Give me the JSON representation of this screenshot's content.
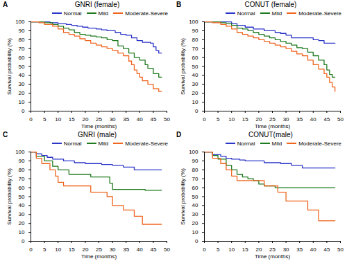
{
  "chart_data": [
    {
      "type": "line",
      "panel": "A",
      "title": "GNRI (female)",
      "x_label": "Time (months)",
      "y_label": "Survival probability (%)",
      "xlim": [
        0,
        50
      ],
      "ylim": [
        0,
        100
      ],
      "xticks": [
        0,
        5,
        10,
        15,
        20,
        25,
        30,
        35,
        40,
        45,
        50
      ],
      "yticks": [
        0,
        10,
        20,
        30,
        40,
        50,
        60,
        70,
        80,
        90,
        100
      ],
      "grid": false,
      "legend": "top-right",
      "line_style": "step",
      "series": [
        {
          "name": "Normal",
          "color": "#2b35c8",
          "x": [
            0,
            7,
            10,
            13,
            15,
            17,
            19,
            21,
            24,
            26,
            28,
            31,
            33,
            35,
            37,
            39,
            41,
            44,
            45,
            46,
            47,
            48
          ],
          "values": [
            100,
            99,
            98,
            97,
            96,
            95,
            94,
            93,
            92,
            91,
            90,
            88,
            86,
            85,
            82,
            79,
            77,
            76,
            72,
            68,
            65,
            65
          ]
        },
        {
          "name": "Mild",
          "color": "#1e7a1e",
          "x": [
            0,
            5,
            8,
            10,
            12,
            14,
            16,
            18,
            20,
            22,
            24,
            26,
            28,
            30,
            32,
            34,
            36,
            38,
            40,
            42,
            43,
            45,
            47,
            48
          ],
          "values": [
            100,
            99,
            97,
            95,
            93,
            91,
            88,
            86,
            85,
            84,
            83,
            82,
            80,
            79,
            73,
            70,
            65,
            60,
            57,
            52,
            48,
            42,
            38,
            38
          ]
        },
        {
          "name": "Moderate-Severe",
          "color": "#f0641e",
          "x": [
            0,
            3,
            5,
            8,
            10,
            12,
            14,
            16,
            18,
            20,
            22,
            24,
            26,
            28,
            30,
            32,
            34,
            36,
            37,
            38,
            39,
            40,
            41,
            43,
            45,
            47,
            48
          ],
          "values": [
            100,
            99,
            97,
            95,
            92,
            88,
            86,
            84,
            81,
            79,
            76,
            74,
            72,
            70,
            68,
            65,
            62,
            56,
            52,
            46,
            42,
            38,
            34,
            30,
            25,
            22,
            22
          ]
        }
      ]
    },
    {
      "type": "line",
      "panel": "B",
      "title": "CONUT (female)",
      "x_label": "Time (months)",
      "y_label": "Survival probability (%)",
      "xlim": [
        0,
        50
      ],
      "ylim": [
        0,
        100
      ],
      "xticks": [
        0,
        5,
        10,
        15,
        20,
        25,
        30,
        35,
        40,
        45,
        50
      ],
      "yticks": [
        0,
        10,
        20,
        30,
        40,
        50,
        60,
        70,
        80,
        90,
        100
      ],
      "grid": false,
      "legend": "top-right",
      "line_style": "step",
      "series": [
        {
          "name": "Normal",
          "color": "#2b35c8",
          "x": [
            0,
            10,
            12,
            15,
            18,
            22,
            26,
            28,
            30,
            32,
            40,
            42,
            44,
            48
          ],
          "values": [
            100,
            98,
            96,
            94,
            92,
            90,
            88,
            87,
            85,
            82,
            80,
            79,
            76,
            76
          ]
        },
        {
          "name": "Mild",
          "color": "#1e7a1e",
          "x": [
            0,
            6,
            8,
            10,
            12,
            14,
            16,
            18,
            20,
            22,
            24,
            26,
            28,
            30,
            32,
            34,
            36,
            38,
            40,
            42,
            44,
            45,
            46,
            47,
            48
          ],
          "values": [
            100,
            99,
            98,
            96,
            93,
            92,
            90,
            88,
            86,
            84,
            82,
            80,
            78,
            76,
            74,
            71,
            70,
            66,
            62,
            57,
            52,
            46,
            41,
            38,
            38
          ]
        },
        {
          "name": "Moderate-Severe",
          "color": "#f0641e",
          "x": [
            0,
            3,
            6,
            8,
            10,
            12,
            14,
            16,
            18,
            20,
            22,
            24,
            26,
            28,
            30,
            32,
            34,
            36,
            38,
            40,
            42,
            44,
            45,
            46,
            47,
            48
          ],
          "values": [
            100,
            99,
            97,
            95,
            92,
            88,
            86,
            84,
            82,
            80,
            78,
            76,
            74,
            72,
            70,
            67,
            64,
            62,
            57,
            52,
            47,
            42,
            38,
            32,
            27,
            22
          ]
        }
      ]
    },
    {
      "type": "line",
      "panel": "C",
      "title": "GNRI (male)",
      "x_label": "Time (months)",
      "y_label": "Survival probability (%)",
      "xlim": [
        0,
        50
      ],
      "ylim": [
        0,
        100
      ],
      "xticks": [
        0,
        5,
        10,
        15,
        20,
        25,
        30,
        35,
        40,
        45,
        50
      ],
      "yticks": [
        0,
        10,
        20,
        30,
        40,
        50,
        60,
        70,
        80,
        90,
        100
      ],
      "grid": false,
      "legend": "top-right",
      "line_style": "step",
      "series": [
        {
          "name": "Normal",
          "color": "#2b35c8",
          "x": [
            0,
            2,
            4,
            6,
            8,
            12,
            16,
            20,
            26,
            30,
            34,
            38,
            48
          ],
          "values": [
            100,
            98,
            96,
            94,
            92,
            90,
            88,
            87,
            86,
            85,
            83,
            80,
            80
          ]
        },
        {
          "name": "Mild",
          "color": "#1e7a1e",
          "x": [
            0,
            2,
            5,
            8,
            10,
            14,
            22,
            29,
            30,
            42,
            48
          ],
          "values": [
            100,
            95,
            90,
            84,
            80,
            75,
            72,
            65,
            58,
            57,
            57
          ]
        },
        {
          "name": "Moderate-Severe",
          "color": "#f0641e",
          "x": [
            0,
            2,
            4,
            7,
            9,
            10,
            12,
            22,
            28,
            30,
            34,
            38,
            41,
            48
          ],
          "values": [
            100,
            93,
            87,
            80,
            73,
            66,
            62,
            55,
            50,
            40,
            35,
            28,
            19,
            19
          ]
        }
      ]
    },
    {
      "type": "line",
      "panel": "D",
      "title": "CONUT(male)",
      "x_label": "Time (months)",
      "y_label": "Survival probability (%)",
      "xlim": [
        0,
        50
      ],
      "ylim": [
        0,
        100
      ],
      "xticks": [
        0,
        5,
        10,
        15,
        20,
        25,
        30,
        35,
        40,
        45,
        50
      ],
      "yticks": [
        0,
        10,
        20,
        30,
        40,
        50,
        60,
        70,
        80,
        90,
        100
      ],
      "grid": false,
      "legend": "top-right",
      "line_style": "step",
      "series": [
        {
          "name": "Normal",
          "color": "#2b35c8",
          "x": [
            0,
            3,
            6,
            8,
            10,
            13,
            15,
            22,
            28,
            32,
            36,
            48
          ],
          "values": [
            100,
            97,
            95,
            93,
            92,
            91,
            90,
            88,
            87,
            85,
            82,
            82
          ]
        },
        {
          "name": "Mild",
          "color": "#1e7a1e",
          "x": [
            0,
            3,
            5,
            8,
            10,
            12,
            14,
            16,
            18,
            20,
            22,
            26,
            48
          ],
          "values": [
            100,
            96,
            92,
            85,
            80,
            75,
            72,
            70,
            68,
            64,
            62,
            60,
            60
          ]
        },
        {
          "name": "Moderate-Severe",
          "color": "#f0641e",
          "x": [
            0,
            3,
            6,
            8,
            10,
            12,
            22,
            27,
            30,
            38,
            42,
            48
          ],
          "values": [
            100,
            93,
            87,
            80,
            73,
            68,
            62,
            55,
            45,
            35,
            23,
            23
          ]
        }
      ]
    }
  ]
}
